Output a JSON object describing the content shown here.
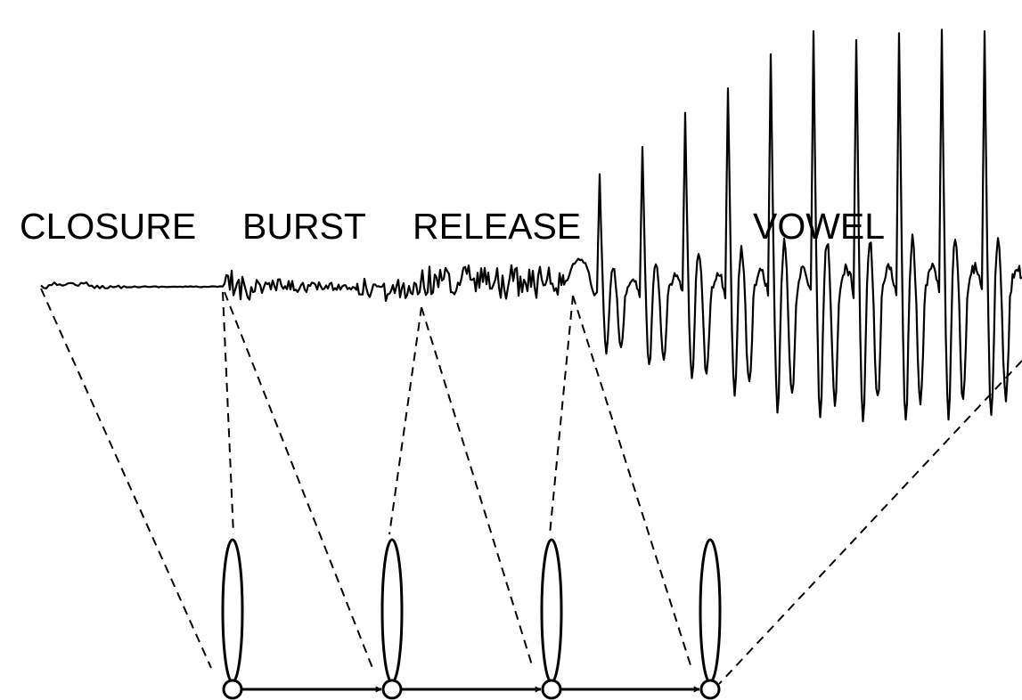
{
  "segments": [
    {
      "id": "closure",
      "label": "CLOSURE"
    },
    {
      "id": "burst",
      "label": "BURST"
    },
    {
      "id": "release",
      "label": "RELEASE"
    },
    {
      "id": "vowel",
      "label": "VOWEL"
    }
  ],
  "states": [
    {
      "id": "state-1"
    },
    {
      "id": "state-2"
    },
    {
      "id": "state-3"
    },
    {
      "id": "state-4"
    }
  ],
  "colors": {
    "ink": "#000000",
    "background": "#ffffff"
  }
}
